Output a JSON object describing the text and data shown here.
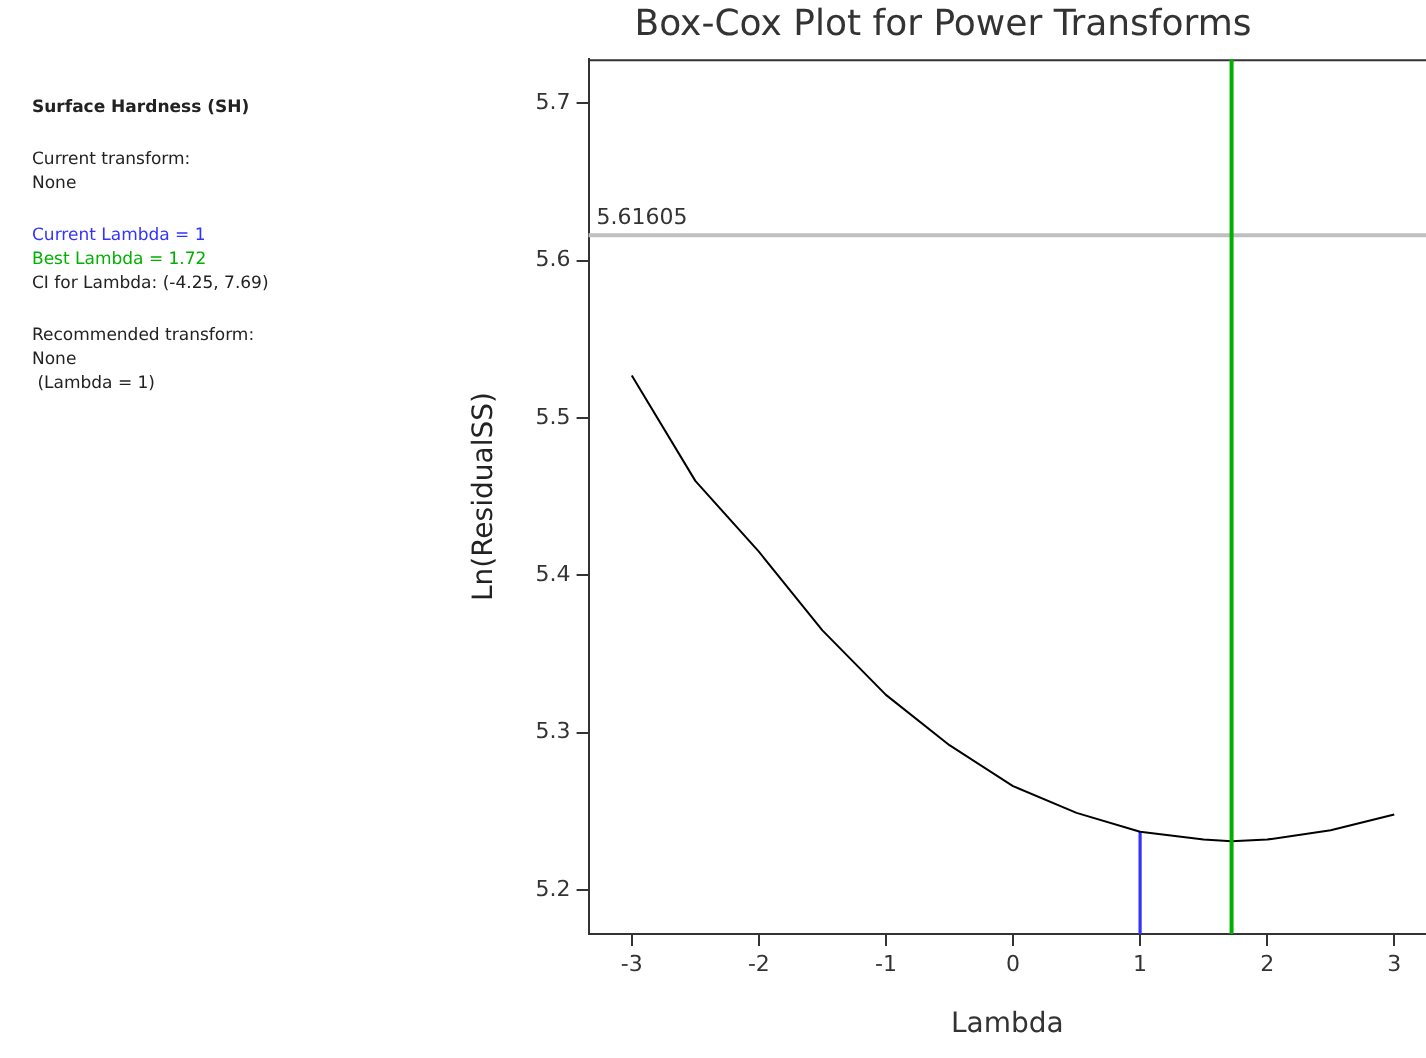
{
  "chart_data": {
    "type": "line",
    "title": "Box-Cox Plot for Power Transforms",
    "xlabel": "Lambda",
    "ylabel": "Ln(ResidualSS)",
    "x": [
      -3,
      -2.5,
      -2,
      -1.5,
      -1,
      -0.5,
      0,
      0.5,
      1,
      1.5,
      1.72,
      2,
      2.5,
      3
    ],
    "series": [
      {
        "color": "#000000",
        "values": [
          5.527,
          5.46,
          5.415,
          5.365,
          5.324,
          5.292,
          5.266,
          5.249,
          5.237,
          5.232,
          5.231,
          5.232,
          5.238,
          5.248
        ]
      },
      {
        "name": "Current Lambda = 1",
        "color": "#3333ff",
        "x": [
          1,
          1
        ],
        "values": [
          5.172,
          5.237
        ]
      }
    ],
    "xlim": [
      -3.34,
      3.25
    ],
    "xticks": [
      -3,
      -2,
      -1,
      0,
      1,
      2,
      3
    ],
    "ylim": [
      5.172,
      5.728
    ],
    "yticks": [
      5.2,
      5.3,
      5.4,
      5.5,
      5.6,
      5.7
    ],
    "ref_lines": [
      {
        "axis": "y",
        "value": 5.61605,
        "label": "5.61605",
        "color": "#c0c0c0"
      },
      {
        "axis": "x",
        "value": 1.72,
        "label": "Best Lambda = 1.72",
        "color": "#00b000"
      }
    ],
    "marker": "none",
    "legend": "left",
    "annotations": [
      "Surface Hardness (SH)",
      "Current transform:\nNone",
      "CI for Lambda: (-4.25, 7.69)",
      "Recommended transform:\nNone\n (Lambda = 1)"
    ]
  }
}
